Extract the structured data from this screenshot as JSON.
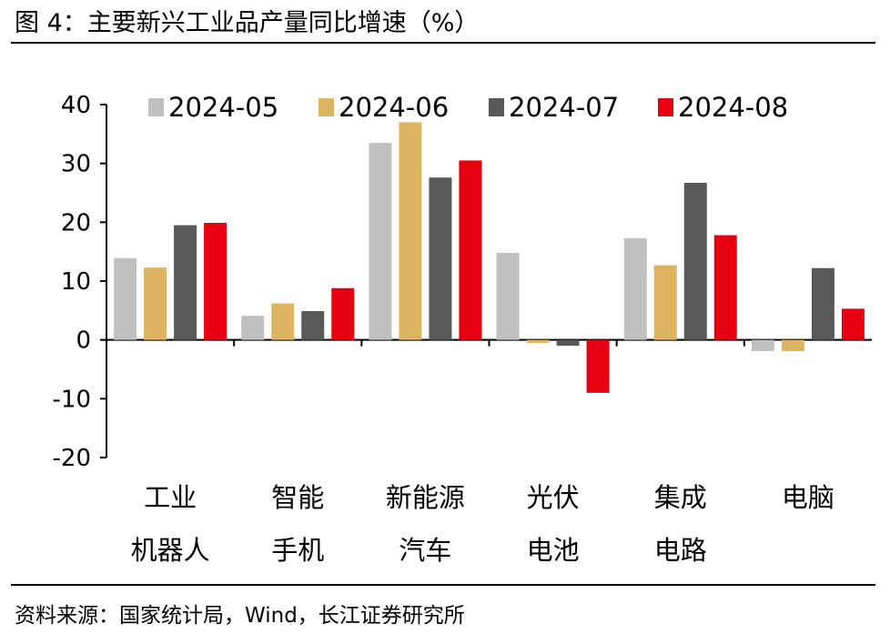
{
  "title": "图 4：主要新兴工业品产量同比增速（%）",
  "source": "资料来源：国家统计局，Wind，长江证券研究所",
  "colors": {
    "2024-05": "#c0c0c0",
    "2024-06": "#ddb462",
    "2024-07": "#595959",
    "2024-08": "#e60012"
  },
  "chart_data": {
    "type": "bar",
    "categories": [
      [
        "工业",
        "机器人"
      ],
      [
        "智能",
        "手机"
      ],
      [
        "新能源",
        "汽车"
      ],
      [
        "光伏",
        "电池"
      ],
      [
        "集成",
        "电路"
      ],
      [
        "电脑"
      ]
    ],
    "series": [
      {
        "name": "2024-05",
        "values": [
          13.9,
          4.1,
          33.5,
          14.8,
          17.3,
          -1.9
        ]
      },
      {
        "name": "2024-06",
        "values": [
          12.3,
          6.2,
          37.0,
          -0.5,
          12.7,
          -1.9
        ]
      },
      {
        "name": "2024-07",
        "values": [
          19.5,
          4.9,
          27.6,
          -1.0,
          26.7,
          12.2
        ]
      },
      {
        "name": "2024-08",
        "values": [
          19.9,
          8.8,
          30.5,
          -9.0,
          17.8,
          5.3
        ]
      }
    ],
    "ylim": [
      -20,
      40
    ],
    "yticks": [
      "40",
      "30",
      "20",
      "10",
      "0",
      "-10",
      "-20"
    ],
    "legend": "top",
    "grid": false
  }
}
